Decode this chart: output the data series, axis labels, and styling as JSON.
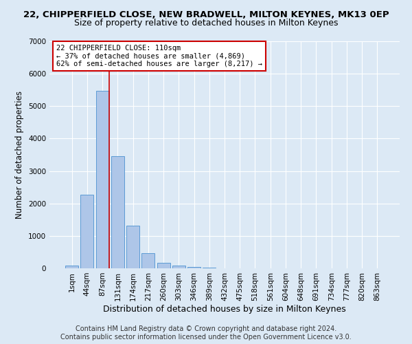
{
  "title": "22, CHIPPERFIELD CLOSE, NEW BRADWELL, MILTON KEYNES, MK13 0EP",
  "subtitle": "Size of property relative to detached houses in Milton Keynes",
  "xlabel": "Distribution of detached houses by size in Milton Keynes",
  "ylabel": "Number of detached properties",
  "bar_labels": [
    "1sqm",
    "44sqm",
    "87sqm",
    "131sqm",
    "174sqm",
    "217sqm",
    "260sqm",
    "303sqm",
    "346sqm",
    "389sqm",
    "432sqm",
    "475sqm",
    "518sqm",
    "561sqm",
    "604sqm",
    "648sqm",
    "691sqm",
    "734sqm",
    "777sqm",
    "820sqm",
    "863sqm"
  ],
  "bar_values": [
    75,
    2270,
    5470,
    3450,
    1310,
    460,
    160,
    90,
    50,
    30,
    0,
    0,
    0,
    0,
    0,
    0,
    0,
    0,
    0,
    0,
    0
  ],
  "bar_color": "#aec6e8",
  "bar_edgecolor": "#5b9bd5",
  "annotation_text": "22 CHIPPERFIELD CLOSE: 110sqm\n← 37% of detached houses are smaller (4,869)\n62% of semi-detached houses are larger (8,217) →",
  "annotation_box_color": "#ffffff",
  "annotation_box_edgecolor": "#cc0000",
  "vline_color": "#cc0000",
  "vline_x": 2.43,
  "ylim": [
    0,
    7000
  ],
  "yticks": [
    0,
    1000,
    2000,
    3000,
    4000,
    5000,
    6000,
    7000
  ],
  "background_color": "#dce9f5",
  "plot_background_color": "#dce9f5",
  "grid_color": "#ffffff",
  "footer_line1": "Contains HM Land Registry data © Crown copyright and database right 2024.",
  "footer_line2": "Contains public sector information licensed under the Open Government Licence v3.0.",
  "title_fontsize": 9.5,
  "subtitle_fontsize": 9,
  "xlabel_fontsize": 9,
  "ylabel_fontsize": 8.5,
  "tick_fontsize": 7.5,
  "annotation_fontsize": 7.5,
  "footer_fontsize": 7
}
